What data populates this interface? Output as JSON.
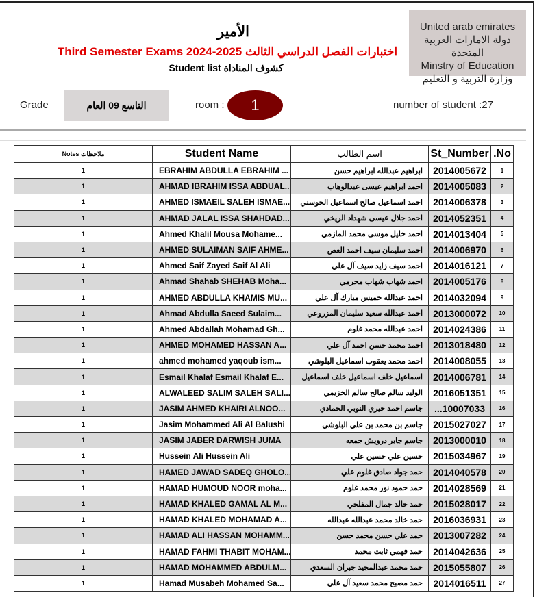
{
  "header": {
    "ministry_lines": [
      "United arab emirates",
      "دولة الامارات العربية المتحدة",
      "Minstry of Education",
      "وزارة التربية و التعليم"
    ],
    "school": "الأمير",
    "exam_title": "Third Semester Exams 2024-2025 اختبارات الفصل الدراسي الثالث",
    "list_title": "Student list كشوف المناداة",
    "grade_label": "Grade",
    "grade_value": "التاسع 09 العام",
    "room_label": "room :",
    "room_value": "1",
    "count_label": "number of student   :27"
  },
  "colors": {
    "exam_title": "#e00000",
    "room_badge": "#7a0000",
    "alt_row": "#d9d9d9"
  },
  "table": {
    "columns": {
      "notes": "Notes ملاحظات",
      "name": "Student Name",
      "arabic": "اسم الطالب",
      "number": "St_Number",
      "no": ".No"
    },
    "rows": [
      {
        "no": "1",
        "num": "2014005672",
        "ar": "ابراهيم عبدالله ابراهيم حسن",
        "name": "EBRAHIM ABDULLA EBRAHIM ...",
        "notes": "1"
      },
      {
        "no": "2",
        "num": "2014005083",
        "ar": "احمد ابراهيم عيسى عبدالوهاب",
        "name": "AHMAD IBRAHIM ISSA ABDUAL...",
        "notes": "1"
      },
      {
        "no": "3",
        "num": "2014006378",
        "ar": "احمد اسماعيل صالح اسماعيل الحوسني",
        "name": "AHMED ISMAEIL SALEH ISMAE...",
        "notes": "1"
      },
      {
        "no": "4",
        "num": "2014052351",
        "ar": "احمد جلال عيسى شهداد الريخي",
        "name": "AHMAD JALAL ISSA SHAHDAD...",
        "notes": "1"
      },
      {
        "no": "5",
        "num": "2014013404",
        "ar": "احمد خليل موسى محمد المازمي",
        "name": "Ahmed Khalil Mousa Mohame...",
        "notes": "1"
      },
      {
        "no": "6",
        "num": "2014006970",
        "ar": "احمد سليمان سيف احمد الغص",
        "name": "AHMED SULAIMAN SAIF AHME...",
        "notes": "1"
      },
      {
        "no": "7",
        "num": "2014016121",
        "ar": "احمد سيف زايد سيف آل علي",
        "name": "Ahmed Saif Zayed Saif Al Ali",
        "notes": "1"
      },
      {
        "no": "8",
        "num": "2014005176",
        "ar": "احمد شهاب شهاب محرمي",
        "name": "Ahmad Shahab SHEHAB Moha...",
        "notes": "1"
      },
      {
        "no": "9",
        "num": "2014032094",
        "ar": "احمد عبدالله خميس مبارك آل علي",
        "name": "AHMED ABDULLA KHAMIS MU...",
        "notes": "1"
      },
      {
        "no": "10",
        "num": "2013000072",
        "ar": "احمد عبدالله سعيد سليمان المزروعي",
        "name": "Ahmad Abdulla Saeed Sulaim...",
        "notes": "1"
      },
      {
        "no": "11",
        "num": "2014024386",
        "ar": "احمد عبدالله محمد غلوم",
        "name": "Ahmed Abdallah Mohamad Gh...",
        "notes": "1"
      },
      {
        "no": "12",
        "num": "2013018480",
        "ar": "احمد محمد حسن احمد آل علي",
        "name": "AHMED MOHAMED HASSAN A...",
        "notes": "1"
      },
      {
        "no": "13",
        "num": "2014008055",
        "ar": "احمد محمد يعقوب اسماعيل البلوشي",
        "name": "ahmed mohamed yaqoub ism...",
        "notes": "1"
      },
      {
        "no": "14",
        "num": "2014006781",
        "ar": "اسماعيل خلف اسماعيل خلف اسماعيل",
        "name": "Esmail Khalaf Esmail Khalaf E...",
        "notes": "1"
      },
      {
        "no": "15",
        "num": "2016051351",
        "ar": "الوليد سالم صالح سالم الخزيمي",
        "name": "ALWALEED SALIM SALEH SALI...",
        "notes": "1"
      },
      {
        "no": "16",
        "num": "...10007033",
        "ar": "جاسم احمد خيري النوبي الحمادي",
        "name": "JASIM AHMED KHAIRI ALNOO...",
        "notes": "1"
      },
      {
        "no": "17",
        "num": "2015027027",
        "ar": "جاسم بن محمد بن علي البلوشي",
        "name": "Jasim Mohammed Ali Al Balushi",
        "notes": "1"
      },
      {
        "no": "18",
        "num": "2013000010",
        "ar": "جاسم جابر درويش جمعه",
        "name": "JASIM JABER DARWISH JUMA",
        "notes": "1"
      },
      {
        "no": "19",
        "num": "2015034967",
        "ar": "حسين علي حسين علي",
        "name": "Hussein Ali Hussein Ali",
        "notes": "1"
      },
      {
        "no": "20",
        "num": "2014040578",
        "ar": "حمد جواد صادق غلوم علي",
        "name": "HAMED JAWAD SADEQ GHOLO...",
        "notes": "1"
      },
      {
        "no": "21",
        "num": "2014028569",
        "ar": "حمد حمود نور محمد غلوم",
        "name": "HAMAD HUMOUD NOOR moha...",
        "notes": "1"
      },
      {
        "no": "22",
        "num": "2015028017",
        "ar": "حمد خالد جمال المفلحي",
        "name": "HAMAD KHALED GAMAL AL M...",
        "notes": "1"
      },
      {
        "no": "23",
        "num": "2016036931",
        "ar": "حمد خالد محمد عبدالله عبدالله",
        "name": "HAMAD KHALED MOHAMAD A...",
        "notes": "1"
      },
      {
        "no": "24",
        "num": "2013007282",
        "ar": "حمد علي حسن محمد حسن",
        "name": "HAMAD ALI HASSAN MOHAMM...",
        "notes": "1"
      },
      {
        "no": "25",
        "num": "2014042636",
        "ar": "حمد فهمي ثابت محمد",
        "name": "HAMAD FAHMI THABIT MOHAM...",
        "notes": "1"
      },
      {
        "no": "26",
        "num": "2015055807",
        "ar": "حمد محمد عبدالمجيد جبران السعدي",
        "name": "HAMAD MOHAMMED ABDULM...",
        "notes": "1"
      },
      {
        "no": "27",
        "num": "2014016511",
        "ar": "حمد مصبح محمد سعيد آل علي",
        "name": "Hamad Musabeh Mohamed Sa...",
        "notes": "1"
      }
    ]
  }
}
